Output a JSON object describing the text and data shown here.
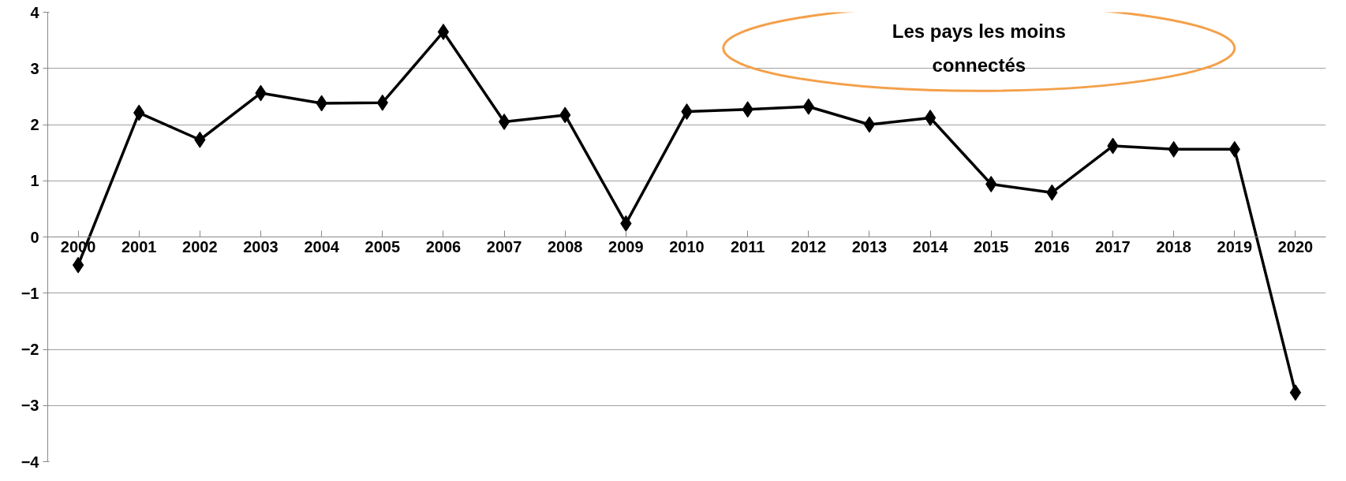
{
  "chart_data": {
    "type": "line",
    "title": "Les pays les moins connectés",
    "categories": [
      "2000",
      "2001",
      "2002",
      "2003",
      "2004",
      "2005",
      "2006",
      "2007",
      "2008",
      "2009",
      "2010",
      "2011",
      "2012",
      "2013",
      "2014",
      "2015",
      "2016",
      "2017",
      "2018",
      "2019",
      "2020"
    ],
    "series": [
      {
        "color": "#000000",
        "values": [
          -0.5,
          2.21,
          1.73,
          2.56,
          2.38,
          2.39,
          3.65,
          2.05,
          2.17,
          0.24,
          2.23,
          2.27,
          2.32,
          2.0,
          2.12,
          0.94,
          0.79,
          1.62,
          1.56,
          1.56,
          -2.77
        ]
      }
    ],
    "ylim": [
      -4,
      4
    ],
    "yticks": [
      -4,
      -3,
      -2,
      -1,
      0,
      1,
      2,
      3,
      4
    ],
    "grid": "y",
    "marker": "diamond",
    "line_style": "solid"
  }
}
